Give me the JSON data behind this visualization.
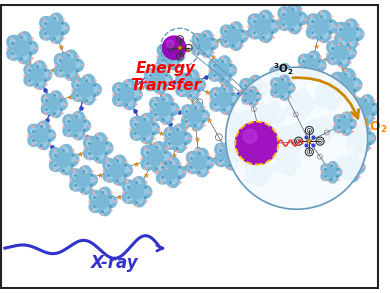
{
  "bg_color": "#ffffff",
  "border_color": "#333333",
  "fig_width": 3.9,
  "fig_height": 2.93,
  "energy_transfer_text": "Energy\nTransfer",
  "energy_transfer_color": "#ff0000",
  "xray_text": "X-ray",
  "xray_color": "#3333cc",
  "o2_color": "#ff8800",
  "inset_circle_color": "#6699bb",
  "purple_color": "#9900bb",
  "purple_light": "#cc44ee",
  "blue_cluster_color": "#7ab8d8",
  "blue_cluster_light": "#b0d8f0",
  "blue_cluster_dark": "#5090b0",
  "arrow_color": "#cc8800",
  "red_wave_color": "#ff3333",
  "dark_color": "#333333",
  "orange_color": "#ff9900",
  "blue_linker_color": "#3344cc",
  "pink_dot_color": "#ffaaaa",
  "connector_color": "#6699bb",
  "gray_color": "#888888",
  "dashed_circle_color": "#6699bb",
  "yellow_dash_color": "#ffcc00"
}
